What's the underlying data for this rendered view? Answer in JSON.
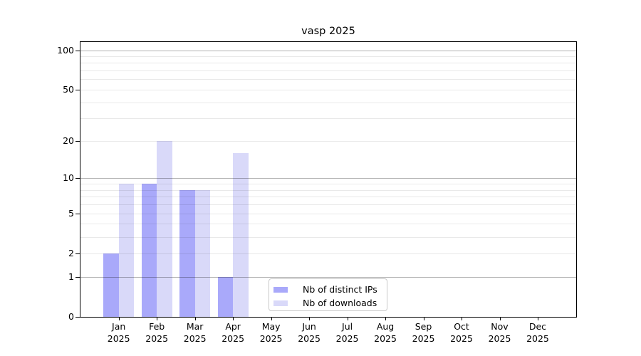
{
  "figure": {
    "background": "#ffffff"
  },
  "chart_data": {
    "type": "bar",
    "title": "vasp 2025",
    "x_axis": {
      "months": [
        "Jan",
        "Feb",
        "Mar",
        "Apr",
        "May",
        "Jun",
        "Jul",
        "Aug",
        "Sep",
        "Oct",
        "Nov",
        "Dec"
      ],
      "year": "2025"
    },
    "y_axis": {
      "scale": "log10(1+x)",
      "range": [
        0,
        115
      ],
      "tick_labels": [
        "0",
        "1",
        "2",
        "5",
        "10",
        "20",
        "50",
        "100"
      ],
      "major_gridlines": [
        1,
        10,
        100
      ],
      "minor_gridlines": [
        2,
        3,
        4,
        5,
        6,
        7,
        8,
        9,
        20,
        30,
        40,
        50,
        60,
        70,
        80,
        90
      ],
      "major_grid_color": "rgba(0,0,0,0.30)",
      "minor_grid_color": "rgba(0,0,0,0.085)"
    },
    "series": [
      {
        "name": "Nb of distinct IPs",
        "slug": "distinct-ips",
        "color": "#a9a9fa",
        "values": [
          2,
          9,
          8,
          1,
          0,
          0,
          0,
          0,
          0,
          0,
          0,
          0
        ]
      },
      {
        "name": "Nb of downloads",
        "slug": "downloads",
        "color": "#d9d9f9",
        "values": [
          9,
          20,
          8,
          16,
          0,
          0,
          0,
          0,
          0,
          0,
          0,
          0
        ]
      }
    ],
    "legend": {
      "position": "lower center"
    }
  }
}
